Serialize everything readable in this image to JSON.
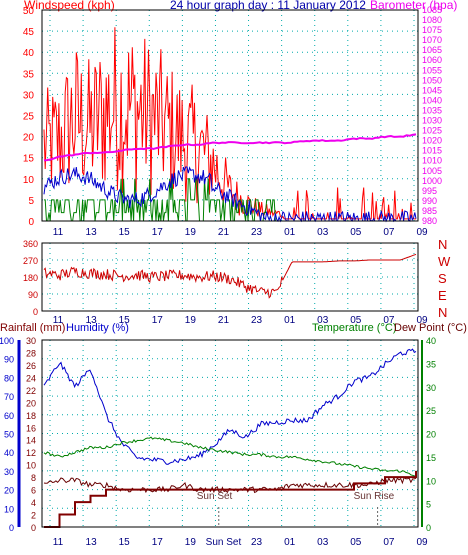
{
  "header": {
    "left_title": "Windspeed (kph)",
    "center_title": "24 hour graph day : 11 January 2012",
    "right_title": "Barometer (hpa)"
  },
  "colors": {
    "windspeed": "#ff0000",
    "gust_avg": "#0000cc",
    "wind_green": "#008000",
    "barometer": "#ee00ee",
    "direction": "#cc0000",
    "humidity": "#0000cc",
    "temperature": "#008000",
    "dewpoint": "#660000",
    "rainfall": "#800000",
    "axis_humidity": "#0000cc",
    "axis_temp": "#008000",
    "grid": "#00aaaa"
  },
  "x_axis": {
    "hours_top": [
      "11",
      "13",
      "15",
      "17",
      "19",
      "21",
      "23",
      "01",
      "03",
      "05",
      "07",
      "09"
    ],
    "hours_bottom": [
      "11",
      "13",
      "15",
      "17",
      "19",
      "Sun Set",
      "23",
      "01",
      "03",
      "05",
      "07",
      "09"
    ]
  },
  "panel3": {
    "label_rainfall": "Rainfall (mm)",
    "label_humidity": "Humidity (%)",
    "label_temperature": "Temperature (°C)",
    "label_dewpoint": "Dew Point (°C)",
    "label_sunset": "Sun Set",
    "label_sunrise": "Sun Rise"
  },
  "chart_data": [
    {
      "type": "line",
      "title": "24 hour graph day : 11 January 2012",
      "xlabel": "",
      "series": [
        {
          "name": "Windspeed (kph)",
          "values": [
            20,
            22,
            28,
            25,
            30,
            32,
            30,
            28,
            25,
            22,
            20,
            15,
            8,
            5,
            3,
            2,
            2,
            2,
            2,
            2,
            4,
            2,
            2,
            2,
            3
          ]
        },
        {
          "name": "Barometer (hpa)",
          "values": [
            1010,
            1012,
            1013,
            1014,
            1014,
            1015,
            1016,
            1016,
            1017,
            1018,
            1018,
            1019,
            1019,
            1019,
            1019,
            1019,
            1019,
            1020,
            1020,
            1020,
            1021,
            1021,
            1022,
            1022,
            1023
          ]
        }
      ],
      "ylabel_left": "Windspeed (kph)",
      "ylim_left": [
        0,
        50
      ],
      "ylabel_right": "Barometer (hpa)",
      "ylim_right": [
        980,
        1085
      ],
      "y_ticks_left": [
        "0",
        "5",
        "10",
        "15",
        "20",
        "25",
        "30",
        "35",
        "40",
        "45",
        "50"
      ],
      "y_ticks_right": [
        "980",
        "985",
        "990",
        "995",
        "1000",
        "1005",
        "1010",
        "1015",
        "1020",
        "1025",
        "1030",
        "1035",
        "1040",
        "1045",
        "1050",
        "1055",
        "1060",
        "1065",
        "1070",
        "1075",
        "1080",
        "1085"
      ],
      "grid": true
    },
    {
      "type": "line",
      "series": [
        {
          "name": "Wind direction",
          "values": [
            200,
            190,
            210,
            200,
            195,
            185,
            190,
            180,
            185,
            190,
            180,
            185,
            170,
            130,
            100,
            100,
            260,
            260,
            260,
            265,
            265,
            270,
            270,
            270,
            300
          ]
        }
      ],
      "ylim": [
        0,
        360
      ],
      "y_ticks": [
        "0",
        "90",
        "180",
        "270",
        "360"
      ],
      "y_ticks_extra": [
        "45",
        "135",
        "225",
        "315"
      ],
      "compass": [
        "N",
        "W",
        "S",
        "E",
        "N"
      ],
      "grid": true
    },
    {
      "type": "line",
      "series": [
        {
          "name": "Humidity (%)",
          "values": [
            75,
            88,
            75,
            85,
            60,
            45,
            37,
            36,
            35,
            36,
            38,
            44,
            52,
            48,
            55,
            56,
            57,
            57,
            65,
            70,
            78,
            80,
            87,
            93,
            94
          ]
        },
        {
          "name": "Temperature (°C)",
          "values": [
            16,
            15,
            16,
            17,
            17,
            18,
            18.5,
            19,
            18.5,
            18,
            17,
            16.5,
            16,
            15.5,
            15.5,
            15,
            15,
            14.5,
            14,
            13.5,
            13,
            12.5,
            12,
            12,
            11
          ]
        },
        {
          "name": "Dew Point (°C)",
          "values": [
            9,
            10,
            10,
            9,
            9,
            8,
            8,
            8,
            8,
            9,
            8,
            8,
            8,
            8,
            8,
            8,
            9,
            9,
            9,
            9,
            9,
            9,
            10,
            10,
            10
          ]
        },
        {
          "name": "Rainfall (mm)",
          "values": [
            0,
            2,
            4,
            5,
            6,
            6,
            6,
            6,
            6,
            6,
            6,
            6,
            6,
            6,
            6,
            6,
            6,
            6,
            6,
            6,
            7,
            7,
            8,
            8,
            9
          ]
        }
      ],
      "ylabel_left": "Rainfall (mm)",
      "ylim_rain": [
        0,
        30
      ],
      "ylim_humidity": [
        0,
        100
      ],
      "ylim_temp": [
        0,
        40
      ],
      "y_ticks_rain": [
        "0",
        "2",
        "4",
        "6",
        "8",
        "10",
        "12",
        "14",
        "16",
        "18",
        "20",
        "22",
        "24",
        "26",
        "28",
        "30"
      ],
      "y_ticks_humidity": [
        "0",
        "10",
        "20",
        "30",
        "40",
        "50",
        "60",
        "70",
        "80",
        "90",
        "100"
      ],
      "y_ticks_temp": [
        "0",
        "5",
        "10",
        "15",
        "20",
        "25",
        "30",
        "35",
        "40"
      ],
      "grid": true
    }
  ]
}
